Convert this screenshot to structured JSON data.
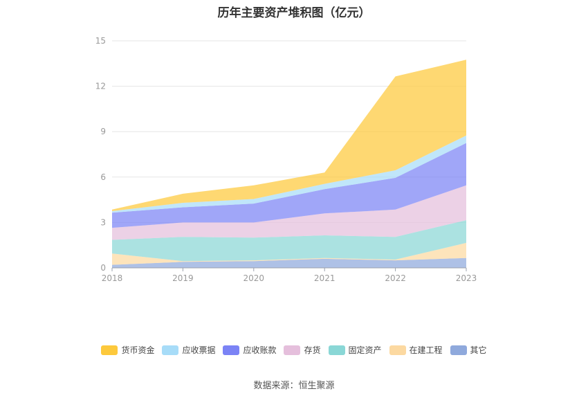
{
  "chart_data": {
    "type": "area",
    "stacked": true,
    "title": "历年主要资产堆积图（亿元）",
    "categories": [
      "2018",
      "2019",
      "2020",
      "2021",
      "2022",
      "2023"
    ],
    "ylim": [
      0,
      15
    ],
    "yticks": [
      0,
      3,
      6,
      9,
      12,
      15
    ],
    "grid": true,
    "legend_position": "bottom",
    "series": [
      {
        "name": "其它",
        "color": "#8fa9dc",
        "values": [
          0.2,
          0.4,
          0.45,
          0.6,
          0.5,
          0.65
        ]
      },
      {
        "name": "在建工程",
        "color": "#fcd9a1",
        "values": [
          0.75,
          0.05,
          0.05,
          0.05,
          0.05,
          1.0
        ]
      },
      {
        "name": "固定资产",
        "color": "#8ad7d6",
        "values": [
          0.9,
          1.6,
          1.5,
          1.5,
          1.5,
          1.5
        ]
      },
      {
        "name": "存货",
        "color": "#e5bfdc",
        "values": [
          0.8,
          0.95,
          1.0,
          1.45,
          1.8,
          2.3
        ]
      },
      {
        "name": "应收账款",
        "color": "#7b83f5",
        "values": [
          1.0,
          1.0,
          1.25,
          1.6,
          2.1,
          2.8
        ]
      },
      {
        "name": "应收票据",
        "color": "#a7dcf8",
        "values": [
          0.1,
          0.3,
          0.3,
          0.35,
          0.5,
          0.5
        ]
      },
      {
        "name": "货币资金",
        "color": "#fdc93c",
        "values": [
          0.1,
          0.6,
          0.9,
          0.75,
          6.2,
          5.0
        ]
      }
    ],
    "source": "数据来源：恒生聚源"
  }
}
